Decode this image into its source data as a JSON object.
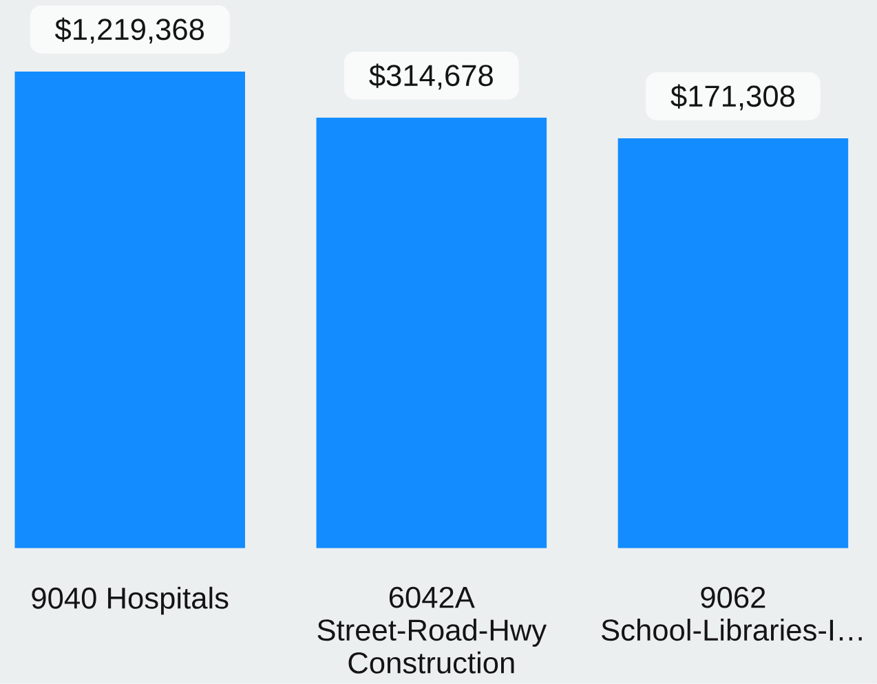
{
  "chart_data": {
    "type": "bar",
    "categories": [
      "9040 Hospitals",
      "6042A Street-Road-Hwy Construction",
      "9062 School-Libraries-I…"
    ],
    "values": [
      1219368,
      314678,
      171308
    ],
    "value_labels": [
      "$1,219,368",
      "$314,678",
      "$171,308"
    ],
    "color": "#138cff",
    "log": true,
    "ylim": [
      1,
      10000000
    ],
    "tick_labels": "x"
  }
}
